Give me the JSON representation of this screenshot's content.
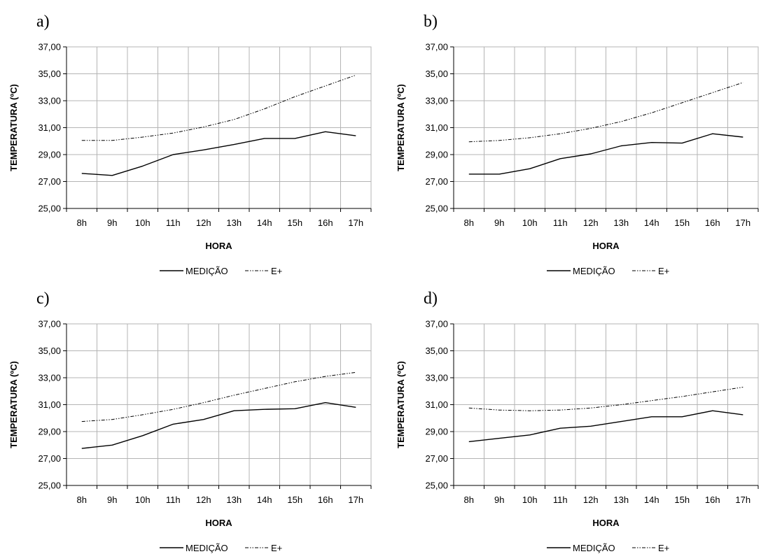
{
  "chart_data": [
    {
      "type": "line",
      "panel_label": "a)",
      "categories": [
        "8h",
        "9h",
        "10h",
        "11h",
        "12h",
        "13h",
        "14h",
        "15h",
        "16h",
        "17h"
      ],
      "series": [
        {
          "name": "MEDIÇÃO",
          "values": [
            27.6,
            27.45,
            28.15,
            29.0,
            29.35,
            29.75,
            30.2,
            30.2,
            30.7,
            30.4
          ],
          "line_style": "solid"
        },
        {
          "name": "E+",
          "values": [
            30.05,
            30.05,
            30.3,
            30.6,
            31.05,
            31.6,
            32.4,
            33.3,
            34.1,
            34.9
          ],
          "line_style": "dash-dot"
        }
      ],
      "xlabel": "HORA",
      "ylabel": "TEMPERATURA (ºC)",
      "ylim": [
        25,
        37
      ],
      "yticks": [
        "25,00",
        "27,00",
        "29,00",
        "31,00",
        "33,00",
        "35,00",
        "37,00"
      ],
      "grid": true,
      "legend": "bottom-center"
    },
    {
      "type": "line",
      "panel_label": "b)",
      "categories": [
        "8h",
        "9h",
        "10h",
        "11h",
        "12h",
        "13h",
        "14h",
        "15h",
        "16h",
        "17h"
      ],
      "series": [
        {
          "name": "MEDIÇÃO",
          "values": [
            27.55,
            27.55,
            27.95,
            28.7,
            29.05,
            29.65,
            29.9,
            29.85,
            30.55,
            30.3
          ],
          "line_style": "solid"
        },
        {
          "name": "E+",
          "values": [
            29.95,
            30.05,
            30.25,
            30.55,
            30.95,
            31.45,
            32.1,
            32.85,
            33.6,
            34.35
          ],
          "line_style": "dash-dot"
        }
      ],
      "xlabel": "HORA",
      "ylabel": "TEMPERATURA (ºC)",
      "ylim": [
        25,
        37
      ],
      "yticks": [
        "25,00",
        "27,00",
        "29,00",
        "31,00",
        "33,00",
        "35,00",
        "37,00"
      ],
      "grid": true,
      "legend": "bottom-center"
    },
    {
      "type": "line",
      "panel_label": "c)",
      "categories": [
        "8h",
        "9h",
        "10h",
        "11h",
        "12h",
        "13h",
        "14h",
        "15h",
        "16h",
        "17h"
      ],
      "series": [
        {
          "name": "MEDIÇÃO",
          "values": [
            27.75,
            28.0,
            28.7,
            29.55,
            29.9,
            30.55,
            30.65,
            30.7,
            31.15,
            30.8
          ],
          "line_style": "solid"
        },
        {
          "name": "E+",
          "values": [
            29.75,
            29.9,
            30.25,
            30.65,
            31.15,
            31.7,
            32.2,
            32.7,
            33.1,
            33.4
          ],
          "line_style": "dash-dot"
        }
      ],
      "xlabel": "HORA",
      "ylabel": "TEMPERATURA (ºC)",
      "ylim": [
        25,
        37
      ],
      "yticks": [
        "25,00",
        "27,00",
        "29,00",
        "31,00",
        "33,00",
        "35,00",
        "37,00"
      ],
      "grid": true,
      "legend": "bottom-center"
    },
    {
      "type": "line",
      "panel_label": "d)",
      "categories": [
        "8h",
        "9h",
        "10h",
        "11h",
        "12h",
        "13h",
        "14h",
        "15h",
        "16h",
        "17h"
      ],
      "series": [
        {
          "name": "MEDIÇÃO",
          "values": [
            28.25,
            28.5,
            28.75,
            29.25,
            29.4,
            29.75,
            30.1,
            30.1,
            30.55,
            30.25
          ],
          "line_style": "solid"
        },
        {
          "name": "E+",
          "values": [
            30.75,
            30.6,
            30.55,
            30.6,
            30.75,
            31.0,
            31.3,
            31.6,
            31.95,
            32.3
          ],
          "line_style": "dash-dot"
        }
      ],
      "xlabel": "HORA",
      "ylabel": "TEMPERATURA (ºC)",
      "ylim": [
        25,
        37
      ],
      "yticks": [
        "25,00",
        "27,00",
        "29,00",
        "31,00",
        "33,00",
        "35,00",
        "37,00"
      ],
      "grid": true,
      "legend": "bottom-center"
    }
  ]
}
